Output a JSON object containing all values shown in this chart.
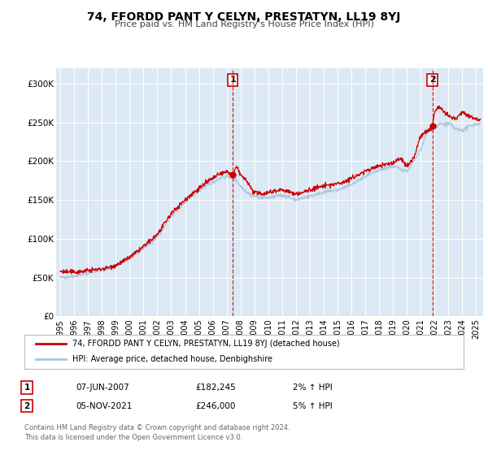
{
  "title": "74, FFORDD PANT Y CELYN, PRESTATYN, LL19 8YJ",
  "subtitle": "Price paid vs. HM Land Registry's House Price Index (HPI)",
  "background_color": "#dce9f5",
  "red_color": "#cc0000",
  "blue_color": "#aac4dd",
  "ylim": [
    0,
    320000
  ],
  "xlim_start": 1994.7,
  "xlim_end": 2025.5,
  "yticks": [
    0,
    50000,
    100000,
    150000,
    200000,
    250000,
    300000
  ],
  "ytick_labels": [
    "£0",
    "£50K",
    "£100K",
    "£150K",
    "£200K",
    "£250K",
    "£300K"
  ],
  "xticks": [
    1995,
    1996,
    1997,
    1998,
    1999,
    2000,
    2001,
    2002,
    2003,
    2004,
    2005,
    2006,
    2007,
    2008,
    2009,
    2010,
    2011,
    2012,
    2013,
    2014,
    2015,
    2016,
    2017,
    2018,
    2019,
    2020,
    2021,
    2022,
    2023,
    2024,
    2025
  ],
  "sale1_x": 2007.44,
  "sale1_y": 182245,
  "sale1_label": "1",
  "sale2_x": 2021.84,
  "sale2_y": 246000,
  "sale2_label": "2",
  "legend_line1": "74, FFORDD PANT Y CELYN, PRESTATYN, LL19 8YJ (detached house)",
  "legend_line2": "HPI: Average price, detached house, Denbighshire",
  "table_row1_num": "1",
  "table_row1_date": "07-JUN-2007",
  "table_row1_price": "£182,245",
  "table_row1_hpi": "2% ↑ HPI",
  "table_row2_num": "2",
  "table_row2_date": "05-NOV-2021",
  "table_row2_price": "£246,000",
  "table_row2_hpi": "5% ↑ HPI",
  "footer": "Contains HM Land Registry data © Crown copyright and database right 2024.\nThis data is licensed under the Open Government Licence v3.0."
}
